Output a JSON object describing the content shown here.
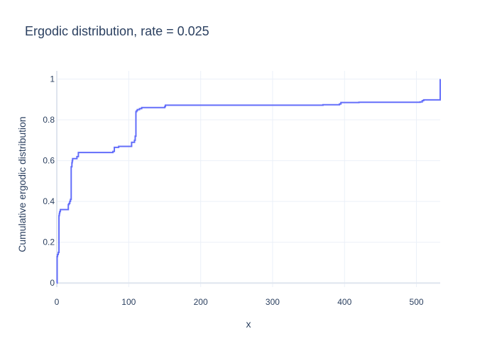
{
  "chart_data": {
    "type": "line",
    "title": "Ergodic distribution, rate = 0.025",
    "xlabel": "x",
    "ylabel": "Cumulative ergodic distribution",
    "xlim": [
      0,
      533
    ],
    "ylim": [
      -0.02,
      1.04
    ],
    "xticks": [
      0,
      100,
      200,
      300,
      400,
      500
    ],
    "yticks": [
      0,
      0.2,
      0.4,
      0.6,
      0.8,
      1
    ],
    "xtick_labels": [
      "0",
      "100",
      "200",
      "300",
      "400",
      "500"
    ],
    "ytick_labels": [
      "0",
      "0.2",
      "0.4",
      "0.6",
      "0.8",
      "1"
    ],
    "grid": true,
    "line_shape": "step",
    "colors": {
      "line": "#636efa",
      "grid": "#ebf0f8",
      "text": "#2a3f5f"
    },
    "series": [
      {
        "x": [
          0,
          0.5,
          1,
          2,
          3,
          3.5,
          4,
          5,
          10,
          16,
          17,
          18,
          19,
          20,
          21,
          21.5,
          22,
          23,
          24,
          28,
          30,
          78,
          80,
          81,
          86,
          87,
          104,
          108,
          109,
          110,
          111,
          112,
          114,
          115,
          117,
          118,
          150,
          151,
          370,
          393,
          395,
          420,
          505,
          508,
          510,
          532,
          533
        ],
        "y": [
          0.0,
          0.13,
          0.14,
          0.15,
          0.33,
          0.34,
          0.35,
          0.36,
          0.36,
          0.385,
          0.39,
          0.4,
          0.41,
          0.57,
          0.59,
          0.6,
          0.61,
          0.61,
          0.61,
          0.62,
          0.64,
          0.645,
          0.665,
          0.665,
          0.67,
          0.67,
          0.69,
          0.7,
          0.72,
          0.84,
          0.845,
          0.85,
          0.85,
          0.855,
          0.855,
          0.86,
          0.865,
          0.872,
          0.874,
          0.878,
          0.885,
          0.886,
          0.888,
          0.894,
          0.898,
          0.898,
          1.0
        ]
      }
    ]
  }
}
